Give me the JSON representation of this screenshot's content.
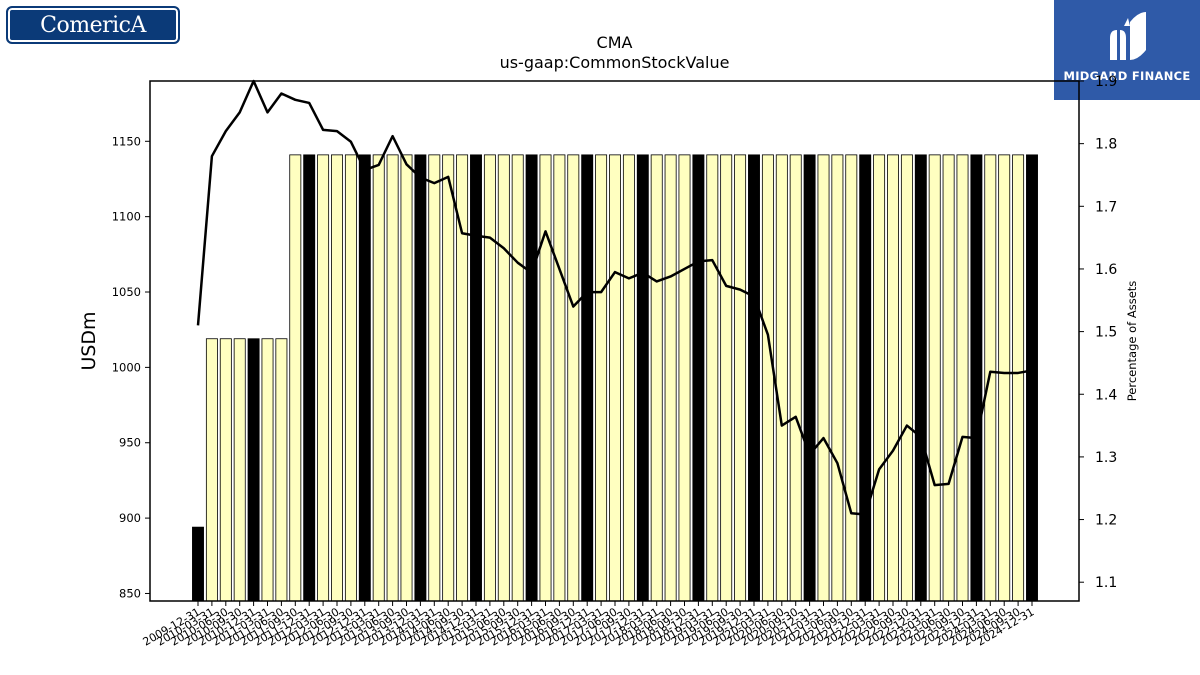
{
  "logos": {
    "left_text": "ComericA",
    "right_text": "MIDGARD FINANCE"
  },
  "chart_data": {
    "type": "bar+line",
    "title": "CMA",
    "subtitle": "us-gaap:CommonStockValue",
    "ylabel": "USDm",
    "y2label": "Percentage of Assets",
    "ylim": [
      845,
      1190
    ],
    "y2lim": [
      1.07,
      1.9
    ],
    "yticks": [
      850,
      900,
      950,
      1000,
      1050,
      1100,
      1150
    ],
    "y2ticks": [
      1.1,
      1.2,
      1.3,
      1.4,
      1.5,
      1.6,
      1.7,
      1.8,
      1.9
    ],
    "grid": false,
    "categories": [
      "2009-12-31",
      "2010-03-31",
      "2010-06-30",
      "2010-09-30",
      "2010-12-31",
      "2011-03-31",
      "2011-06-30",
      "2011-09-30",
      "2011-12-31",
      "2012-03-31",
      "2012-06-30",
      "2012-09-30",
      "2012-12-31",
      "2013-03-31",
      "2013-06-30",
      "2013-09-30",
      "2013-12-31",
      "2014-03-31",
      "2014-06-30",
      "2014-09-30",
      "2014-12-31",
      "2015-03-31",
      "2015-06-30",
      "2015-09-30",
      "2015-12-31",
      "2016-03-31",
      "2016-06-30",
      "2016-09-30",
      "2016-12-31",
      "2017-03-31",
      "2017-06-30",
      "2017-09-30",
      "2017-12-31",
      "2018-03-31",
      "2018-06-30",
      "2018-09-30",
      "2018-12-31",
      "2019-03-31",
      "2019-06-30",
      "2019-09-30",
      "2019-12-31",
      "2020-03-31",
      "2020-06-30",
      "2020-09-30",
      "2020-12-31",
      "2021-03-31",
      "2021-06-30",
      "2021-09-30",
      "2021-12-31",
      "2022-03-31",
      "2022-06-30",
      "2022-09-30",
      "2022-12-31",
      "2023-03-31",
      "2023-06-30",
      "2023-09-30",
      "2023-12-31",
      "2024-03-31",
      "2024-06-30",
      "2024-09-30",
      "2024-12-31"
    ],
    "series": [
      {
        "kind": "bar",
        "values": [
          894,
          1019,
          1019,
          1019,
          1019,
          1019,
          1019,
          1141,
          1141,
          1141,
          1141,
          1141,
          1141,
          1141,
          1141,
          1141,
          1141,
          1141,
          1141,
          1141,
          1141,
          1141,
          1141,
          1141,
          1141,
          1141,
          1141,
          1141,
          1141,
          1141,
          1141,
          1141,
          1141,
          1141,
          1141,
          1141,
          1141,
          1141,
          1141,
          1141,
          1141,
          1141,
          1141,
          1141,
          1141,
          1141,
          1141,
          1141,
          1141,
          1141,
          1141,
          1141,
          1141,
          1141,
          1141,
          1141,
          1141,
          1141,
          1141,
          1141,
          1141
        ]
      },
      {
        "kind": "line",
        "axis": "right",
        "values": [
          1.51,
          1.78,
          1.82,
          1.85,
          1.9,
          1.85,
          1.88,
          1.87,
          1.865,
          1.822,
          1.82,
          1.803,
          1.758,
          1.766,
          1.812,
          1.767,
          1.746,
          1.737,
          1.747,
          1.657,
          1.653,
          1.65,
          1.633,
          1.61,
          1.594,
          1.66,
          1.6,
          1.54,
          1.563,
          1.563,
          1.595,
          1.585,
          1.594,
          1.58,
          1.588,
          1.6,
          1.612,
          1.614,
          1.573,
          1.567,
          1.556,
          1.495,
          1.35,
          1.364,
          1.304,
          1.33,
          1.29,
          1.21,
          1.208,
          1.28,
          1.31,
          1.35,
          1.332,
          1.255,
          1.257,
          1.332,
          1.33,
          1.436,
          1.434,
          1.434,
          1.438
        ]
      }
    ],
    "colors": {
      "bar_fill": "#ffffc0",
      "bar_highlight": "#000000",
      "line": "#000000",
      "bar_edge": "#000000"
    },
    "highlighted_categories": [
      "2009-12-31",
      "2010-12-31",
      "2011-12-31",
      "2012-12-31",
      "2013-12-31",
      "2014-12-31",
      "2015-12-31",
      "2016-12-31",
      "2017-12-31",
      "2018-12-31",
      "2019-12-31",
      "2020-12-31",
      "2021-12-31",
      "2022-12-31",
      "2023-12-31",
      "2024-12-31"
    ]
  }
}
